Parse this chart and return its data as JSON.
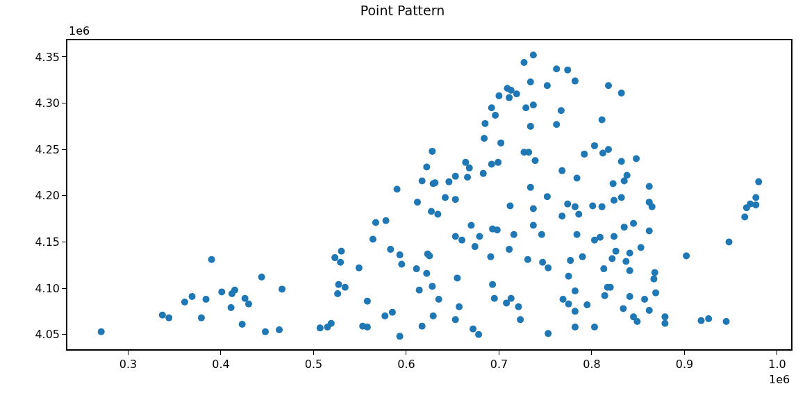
{
  "chart_data": {
    "type": "scatter",
    "title": "Point Pattern",
    "annotations": [
      "1e6",
      "1e6"
    ],
    "xlim": [
      0.2345,
      1.015
    ],
    "ylim": [
      4.034,
      4.368
    ],
    "xticks": [
      0.3,
      0.4,
      0.5,
      0.6,
      0.7,
      0.8,
      0.9,
      {
        "value": 1.0,
        "label": "1.0"
      }
    ],
    "yticks": [
      4.05,
      {
        "value": 4.1,
        "label": "4.10"
      },
      4.15,
      {
        "value": 4.2,
        "label": "4.20"
      },
      4.25,
      {
        "value": 4.3,
        "label": "4.30"
      },
      4.35
    ],
    "marker": "circle",
    "series": [
      {
        "color": "#1f77b4",
        "x": [
          0.271,
          0.337,
          0.344,
          0.361,
          0.369,
          0.379,
          0.384,
          0.39,
          0.401,
          0.411,
          0.412,
          0.415,
          0.423,
          0.426,
          0.43,
          0.444,
          0.448,
          0.463,
          0.466,
          0.737,
          0.727,
          0.734,
          0.752,
          0.709,
          0.713,
          0.7,
          0.711,
          0.719,
          0.692,
          0.729,
          0.737,
          0.696,
          0.685,
          0.734,
          0.684,
          0.702,
          0.628,
          0.727,
          0.732,
          0.739,
          0.622,
          0.664,
          0.668,
          0.692,
          0.699,
          0.617,
          0.629,
          0.631,
          0.646,
          0.653,
          0.666,
          0.683,
          0.59,
          0.734,
          0.762,
          0.774,
          0.782,
          0.818,
          0.832,
          0.767,
          0.762,
          0.811,
          0.803,
          0.792,
          0.812,
          0.818,
          0.832,
          0.848,
          0.768,
          0.784,
          0.823,
          0.838,
          0.835,
          0.862,
          0.98,
          0.612,
          0.642,
          0.653,
          0.752,
          0.627,
          0.634,
          0.567,
          0.578,
          0.712,
          0.737,
          0.67,
          0.693,
          0.698,
          0.737,
          0.653,
          0.66,
          0.679,
          0.716,
          0.746,
          0.564,
          0.674,
          0.583,
          0.593,
          0.623,
          0.625,
          0.711,
          0.53,
          0.523,
          0.529,
          0.691,
          0.731,
          0.747,
          0.753,
          0.549,
          0.595,
          0.611,
          0.622,
          0.655,
          0.527,
          0.534,
          0.526,
          0.628,
          0.693,
          0.614,
          0.635,
          0.695,
          0.713,
          0.708,
          0.721,
          0.558,
          0.657,
          0.577,
          0.585,
          0.629,
          0.653,
          0.723,
          0.617,
          0.507,
          0.515,
          0.519,
          0.553,
          0.558,
          0.672,
          0.678,
          0.753,
          0.593,
          0.774,
          0.782,
          0.768,
          0.786,
          0.801,
          0.811,
          0.824,
          0.832,
          0.862,
          0.865,
          0.977,
          0.971,
          0.977,
          0.967,
          0.965,
          0.784,
          0.803,
          0.809,
          0.824,
          0.835,
          0.845,
          0.862,
          0.948,
          0.853,
          0.826,
          0.841,
          0.822,
          0.837,
          0.902,
          0.777,
          0.79,
          0.813,
          0.841,
          0.868,
          0.867,
          0.775,
          0.782,
          0.817,
          0.82,
          0.814,
          0.841,
          0.869,
          0.857,
          0.769,
          0.775,
          0.795,
          0.782,
          0.834,
          0.862,
          0.845,
          0.849,
          0.879,
          0.879,
          0.918,
          0.926,
          0.945,
          0.782,
          0.803
        ],
        "values": [
          4.053,
          4.071,
          4.068,
          4.085,
          4.091,
          4.068,
          4.088,
          4.131,
          4.096,
          4.079,
          4.094,
          4.098,
          4.061,
          4.089,
          4.083,
          4.112,
          4.053,
          4.055,
          4.099,
          4.352,
          4.344,
          4.323,
          4.319,
          4.316,
          4.314,
          4.308,
          4.306,
          4.31,
          4.295,
          4.295,
          4.298,
          4.287,
          4.278,
          4.275,
          4.262,
          4.257,
          4.248,
          4.247,
          4.247,
          4.238,
          4.231,
          4.236,
          4.23,
          4.234,
          4.236,
          4.216,
          4.213,
          4.214,
          4.215,
          4.221,
          4.22,
          4.224,
          4.207,
          4.209,
          4.337,
          4.336,
          4.324,
          4.319,
          4.311,
          4.292,
          4.277,
          4.282,
          4.254,
          4.245,
          4.246,
          4.25,
          4.237,
          4.24,
          4.227,
          4.219,
          4.213,
          4.222,
          4.216,
          4.21,
          4.215,
          4.193,
          4.198,
          4.196,
          4.199,
          4.183,
          4.18,
          4.171,
          4.173,
          4.189,
          4.186,
          4.168,
          4.164,
          4.163,
          4.168,
          4.156,
          4.152,
          4.156,
          4.158,
          4.158,
          4.153,
          4.145,
          4.142,
          4.136,
          4.137,
          4.135,
          4.142,
          4.14,
          4.133,
          4.128,
          4.134,
          4.131,
          4.128,
          4.122,
          4.122,
          4.126,
          4.121,
          4.116,
          4.111,
          4.104,
          4.101,
          4.094,
          4.102,
          4.104,
          4.098,
          4.088,
          4.089,
          4.089,
          4.084,
          4.08,
          4.086,
          4.08,
          4.07,
          4.074,
          4.07,
          4.066,
          4.066,
          4.059,
          4.057,
          4.058,
          4.062,
          4.059,
          4.058,
          4.056,
          4.05,
          4.051,
          4.048,
          4.191,
          4.188,
          4.178,
          4.18,
          4.189,
          4.188,
          4.195,
          4.198,
          4.193,
          4.188,
          4.198,
          4.191,
          4.19,
          4.187,
          4.177,
          4.158,
          4.152,
          4.155,
          4.156,
          4.166,
          4.17,
          4.162,
          4.15,
          4.144,
          4.14,
          4.138,
          4.132,
          4.129,
          4.135,
          4.13,
          4.134,
          4.121,
          4.119,
          4.117,
          4.11,
          4.113,
          4.097,
          4.101,
          4.101,
          4.092,
          4.091,
          4.095,
          4.088,
          4.088,
          4.083,
          4.082,
          4.075,
          4.078,
          4.076,
          4.069,
          4.064,
          4.069,
          4.062,
          4.065,
          4.067,
          4.064,
          4.058,
          4.058
        ]
      }
    ]
  }
}
